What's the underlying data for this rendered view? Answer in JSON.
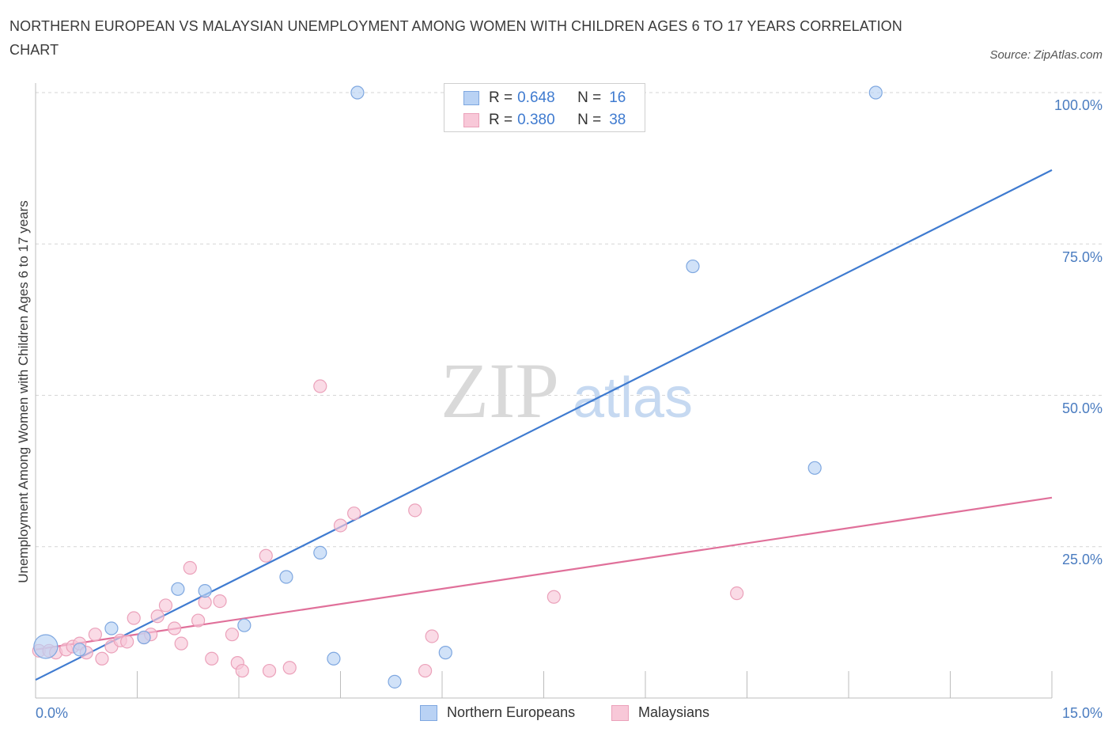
{
  "title": "NORTHERN EUROPEAN VS MALAYSIAN UNEMPLOYMENT AMONG WOMEN WITH CHILDREN AGES 6 TO 17 YEARS CORRELATION CHART",
  "source": "Source: ZipAtlas.com",
  "watermark": {
    "zip": "ZIP",
    "atlas": "atlas"
  },
  "colors": {
    "blue": "#3f7bd0",
    "pink": "#e0709a",
    "blue_fill": "#b9d2f4",
    "pink_fill": "#f8c8d8"
  },
  "legend": {
    "rows": [
      {
        "r_label": "R = ",
        "r_value": "0.648",
        "n_label": "N = ",
        "n_value": "16"
      },
      {
        "r_label": "R = ",
        "r_value": "0.380",
        "n_label": "N = ",
        "n_value": "38"
      }
    ]
  },
  "chart_data": {
    "type": "scatter",
    "title": "NORTHERN EUROPEAN VS MALAYSIAN UNEMPLOYMENT AMONG WOMEN WITH CHILDREN AGES 6 TO 17 YEARS CORRELATION CHART",
    "xlabel": "",
    "ylabel": "Unemployment Among Women with Children Ages 6 to 17 years",
    "xlim": [
      0,
      15
    ],
    "ylim": [
      0,
      100
    ],
    "x_tick_labels": [
      "0.0%",
      "15.0%"
    ],
    "y_ticks": [
      25,
      50,
      75,
      100
    ],
    "y_tick_labels": [
      "25.0%",
      "50.0%",
      "75.0%",
      "100.0%"
    ],
    "grid": "horizontal dashed",
    "legend_position": "top-center",
    "series": [
      {
        "name": "Northern Europeans",
        "r": 0.648,
        "n": 16,
        "trend": {
          "x": [
            0,
            15
          ],
          "y": [
            3,
            87.2
          ]
        },
        "points": [
          {
            "x": 0.15,
            "y": 8.5,
            "big": true
          },
          {
            "x": 0.65,
            "y": 8.0
          },
          {
            "x": 1.12,
            "y": 11.5
          },
          {
            "x": 1.6,
            "y": 10.0
          },
          {
            "x": 2.1,
            "y": 18.0
          },
          {
            "x": 2.5,
            "y": 17.7
          },
          {
            "x": 3.08,
            "y": 12.0
          },
          {
            "x": 3.7,
            "y": 20.0
          },
          {
            "x": 4.2,
            "y": 24.0
          },
          {
            "x": 4.4,
            "y": 6.5
          },
          {
            "x": 4.75,
            "y": 100.0
          },
          {
            "x": 5.3,
            "y": 2.7
          },
          {
            "x": 6.05,
            "y": 7.5
          },
          {
            "x": 9.7,
            "y": 71.3
          },
          {
            "x": 11.5,
            "y": 38.0
          },
          {
            "x": 12.4,
            "y": 100.0
          }
        ]
      },
      {
        "name": "Malaysians",
        "r": 0.38,
        "n": 38,
        "trend": {
          "x": [
            0,
            15
          ],
          "y": [
            8,
            33.1
          ]
        },
        "points": [
          {
            "x": 0.05,
            "y": 7.8
          },
          {
            "x": 0.2,
            "y": 7.8
          },
          {
            "x": 0.3,
            "y": 7.5
          },
          {
            "x": 0.45,
            "y": 8.0
          },
          {
            "x": 0.55,
            "y": 8.5
          },
          {
            "x": 0.65,
            "y": 9.0
          },
          {
            "x": 0.75,
            "y": 7.5
          },
          {
            "x": 0.88,
            "y": 10.5
          },
          {
            "x": 0.98,
            "y": 6.5
          },
          {
            "x": 1.12,
            "y": 8.5
          },
          {
            "x": 1.25,
            "y": 9.5
          },
          {
            "x": 1.35,
            "y": 9.3
          },
          {
            "x": 1.45,
            "y": 13.2
          },
          {
            "x": 1.6,
            "y": 10.0
          },
          {
            "x": 1.7,
            "y": 10.5
          },
          {
            "x": 1.8,
            "y": 13.5
          },
          {
            "x": 1.92,
            "y": 15.3
          },
          {
            "x": 2.05,
            "y": 11.5
          },
          {
            "x": 2.15,
            "y": 9.0
          },
          {
            "x": 2.28,
            "y": 21.5
          },
          {
            "x": 2.4,
            "y": 12.8
          },
          {
            "x": 2.5,
            "y": 15.8
          },
          {
            "x": 2.6,
            "y": 6.5
          },
          {
            "x": 2.72,
            "y": 16.0
          },
          {
            "x": 2.9,
            "y": 10.5
          },
          {
            "x": 2.98,
            "y": 5.8
          },
          {
            "x": 3.05,
            "y": 4.5
          },
          {
            "x": 3.4,
            "y": 23.5
          },
          {
            "x": 3.45,
            "y": 4.5
          },
          {
            "x": 3.75,
            "y": 5.0
          },
          {
            "x": 4.2,
            "y": 51.5
          },
          {
            "x": 4.5,
            "y": 28.5
          },
          {
            "x": 4.7,
            "y": 30.5
          },
          {
            "x": 5.6,
            "y": 31.0
          },
          {
            "x": 5.75,
            "y": 4.5
          },
          {
            "x": 5.85,
            "y": 10.2
          },
          {
            "x": 7.65,
            "y": 16.7
          },
          {
            "x": 10.35,
            "y": 17.3
          }
        ]
      }
    ]
  }
}
